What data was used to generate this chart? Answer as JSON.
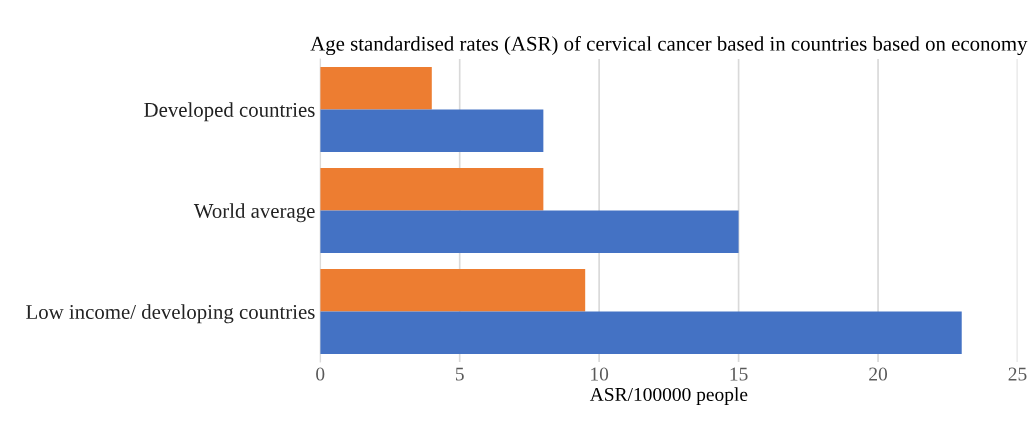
{
  "chart_data": {
    "type": "bar",
    "orientation": "horizontal",
    "title": "Age standardised rates (ASR) of cervical cancer based in countries based on economy",
    "xlabel": "ASR/100000 people",
    "categories": [
      "Developed countries",
      "World average",
      "Low income/ developing countries"
    ],
    "series": [
      {
        "color": "#ed7d31",
        "values": [
          4,
          8,
          9.5
        ]
      },
      {
        "color": "#4472c4",
        "values": [
          8,
          15,
          23
        ]
      }
    ],
    "xlim": [
      0,
      25
    ],
    "xticks": [
      0,
      5,
      10,
      15,
      20,
      25
    ],
    "grid": "x",
    "legend": false
  }
}
